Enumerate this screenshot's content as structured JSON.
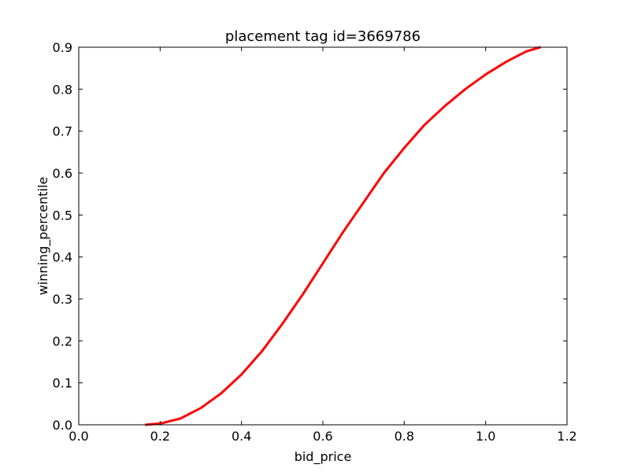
{
  "chart_data": {
    "type": "line",
    "title": "placement tag id=3669786",
    "xlabel": "bid_price",
    "ylabel": "winning_percentile",
    "xlim": [
      0.0,
      1.2
    ],
    "ylim": [
      0.0,
      0.9
    ],
    "xticks": [
      "0.0",
      "0.2",
      "0.4",
      "0.6",
      "0.8",
      "1.0",
      "1.2"
    ],
    "yticks": [
      "0.0",
      "0.1",
      "0.2",
      "0.3",
      "0.4",
      "0.5",
      "0.6",
      "0.7",
      "0.8",
      "0.9"
    ],
    "grid": false,
    "series": [
      {
        "color": "#ff0000",
        "x": [
          0.163,
          0.2,
          0.25,
          0.3,
          0.35,
          0.4,
          0.45,
          0.5,
          0.55,
          0.6,
          0.65,
          0.7,
          0.75,
          0.8,
          0.85,
          0.9,
          0.95,
          1.0,
          1.05,
          1.1,
          1.135
        ],
        "y": [
          0.0,
          0.003,
          0.015,
          0.04,
          0.075,
          0.12,
          0.175,
          0.24,
          0.31,
          0.385,
          0.46,
          0.53,
          0.6,
          0.66,
          0.715,
          0.76,
          0.8,
          0.835,
          0.865,
          0.89,
          0.9
        ]
      }
    ]
  }
}
